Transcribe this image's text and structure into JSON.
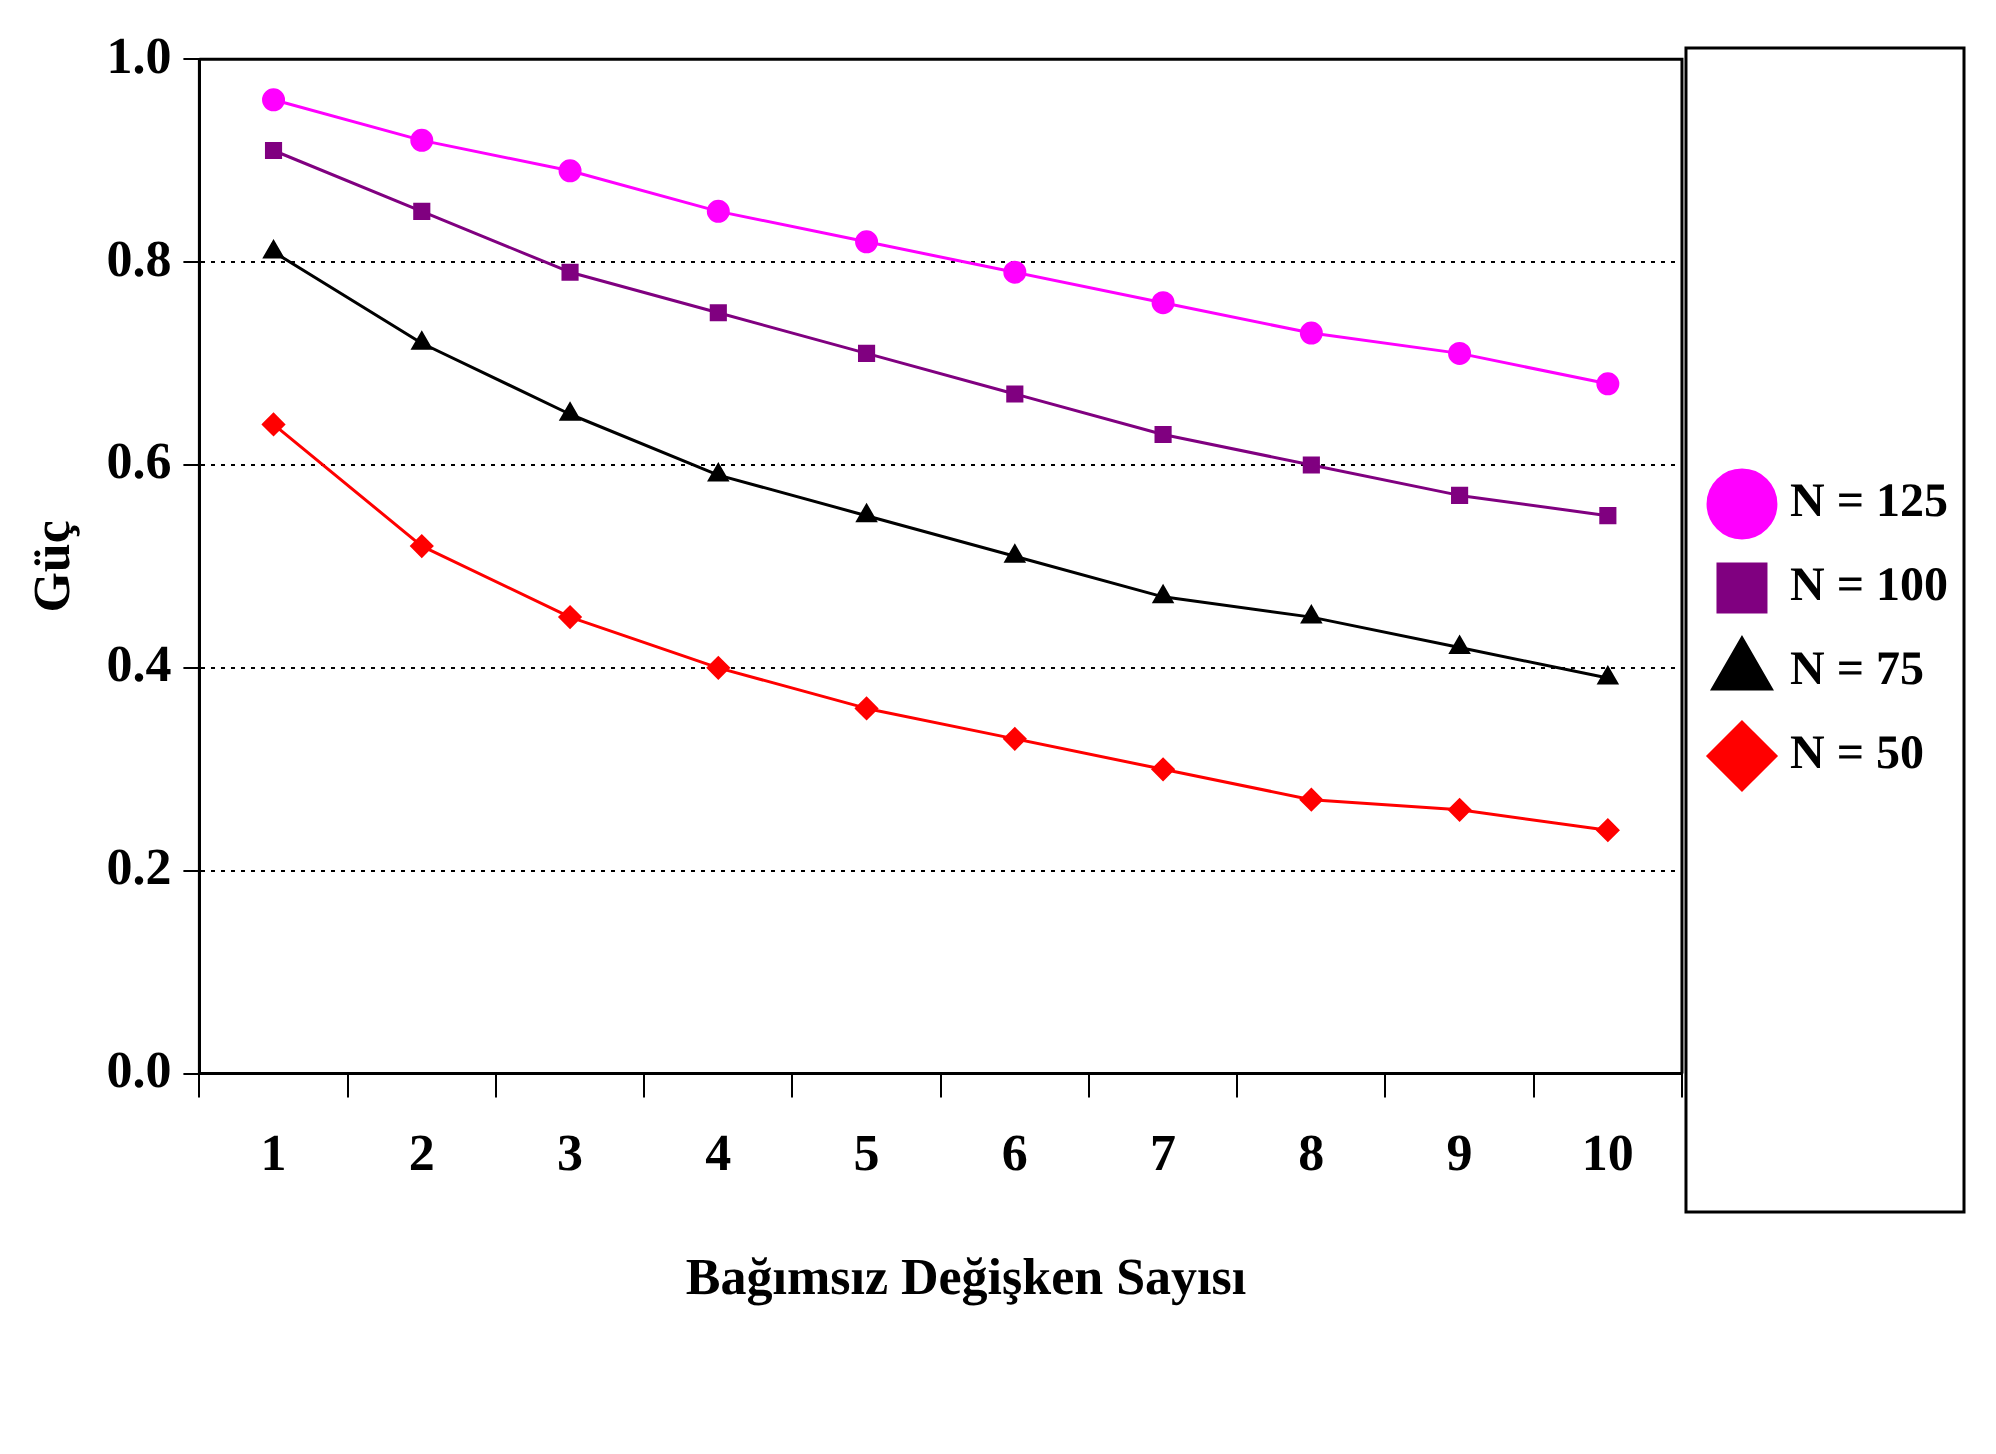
{
  "chart_data": {
    "type": "line",
    "ylabel": "Güç",
    "xlabel": "Bağımsız Değişken Sayısı",
    "categories": [
      "1",
      "2",
      "3",
      "4",
      "5",
      "6",
      "7",
      "8",
      "9",
      "10"
    ],
    "series": [
      {
        "name": "N = 125",
        "color": "#ff00ff",
        "marker": "circle",
        "values": [
          0.96,
          0.92,
          0.89,
          0.85,
          0.82,
          0.79,
          0.76,
          0.73,
          0.71,
          0.68
        ]
      },
      {
        "name": "N = 100",
        "color": "#800080",
        "marker": "square",
        "values": [
          0.91,
          0.85,
          0.79,
          0.75,
          0.71,
          0.67,
          0.63,
          0.6,
          0.57,
          0.55
        ]
      },
      {
        "name": "N = 75",
        "color": "#000000",
        "marker": "triangle",
        "values": [
          0.81,
          0.72,
          0.65,
          0.59,
          0.55,
          0.51,
          0.47,
          0.45,
          0.42,
          0.39
        ]
      },
      {
        "name": "N = 50",
        "color": "#ff0000",
        "marker": "diamond",
        "values": [
          0.64,
          0.52,
          0.45,
          0.4,
          0.36,
          0.33,
          0.3,
          0.27,
          0.26,
          0.24
        ]
      }
    ],
    "ylim": [
      0,
      1
    ],
    "yticks": [
      {
        "value": 0,
        "label": "0.0"
      },
      0.2,
      0.4,
      0.6,
      0.8,
      {
        "value": 1,
        "label": "1.0"
      }
    ],
    "grid": "y",
    "legend": "right",
    "line_style": "solid"
  }
}
